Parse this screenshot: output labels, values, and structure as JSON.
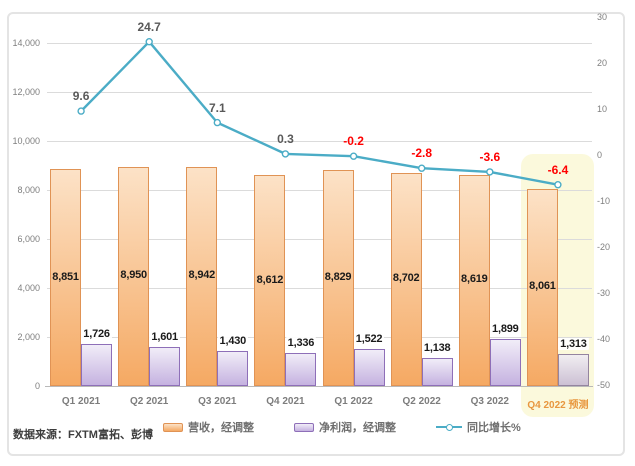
{
  "chart_data": {
    "type": "combo",
    "categories": [
      "Q1 2021",
      "Q2 2021",
      "Q3 2021",
      "Q4 2021",
      "Q1 2022",
      "Q2 2022",
      "Q3 2022",
      "Q4 2022 预测"
    ],
    "forecast_category_index": 7,
    "series": [
      {
        "name": "营收，经调整",
        "type": "bar",
        "axis": "left",
        "values": [
          8851,
          8950,
          8942,
          8612,
          8829,
          8702,
          8619,
          8061
        ],
        "labels": [
          "8,851",
          "8,950",
          "8,942",
          "8,612",
          "8,829",
          "8,702",
          "8,619",
          "8,061"
        ]
      },
      {
        "name": "净利润，经调整",
        "type": "bar",
        "axis": "left",
        "values": [
          1726,
          1601,
          1430,
          1336,
          1522,
          1138,
          1899,
          1313
        ],
        "labels": [
          "1,726",
          "1,601",
          "1,430",
          "1,336",
          "1,522",
          "1,138",
          "1,899",
          "1,313"
        ]
      },
      {
        "name": "同比增长%",
        "type": "line",
        "axis": "right",
        "values": [
          9.6,
          24.7,
          7.1,
          0.3,
          -0.2,
          -2.8,
          -3.6,
          -6.4
        ],
        "labels": [
          "9.6",
          "24.7",
          "7.1",
          "0.3",
          "-0.2",
          "-2.8",
          "-3.6",
          "-6.4"
        ]
      }
    ],
    "left_axis": {
      "min": 0,
      "max": 14000,
      "ticks": [
        {
          "value": 14000,
          "label": "14,000"
        },
        {
          "value": 12000,
          "label": "12,000"
        },
        {
          "value": 10000,
          "label": "10,000"
        },
        {
          "value": 8000,
          "label": "8,000"
        },
        {
          "value": 6000,
          "label": "6,000"
        },
        {
          "value": 4000,
          "label": "4,000"
        },
        {
          "value": 2000,
          "label": "2,000"
        },
        {
          "value": 0,
          "label": "0"
        }
      ]
    },
    "right_axis": {
      "min": -50,
      "max": 30,
      "ticks": [
        {
          "value": 30,
          "label": "30"
        },
        {
          "value": 20,
          "label": "20"
        },
        {
          "value": 10,
          "label": "10"
        },
        {
          "value": 0,
          "label": "0"
        },
        {
          "value": -10,
          "label": "-10"
        },
        {
          "value": -20,
          "label": "-20"
        },
        {
          "value": -30,
          "label": "-30"
        },
        {
          "value": -40,
          "label": "-40"
        },
        {
          "value": -50,
          "label": "-50"
        }
      ]
    },
    "grid": true,
    "legend_position": "bottom",
    "legend": [
      {
        "label": "营收，经调整"
      },
      {
        "label": "净利润，经调整"
      },
      {
        "label": "同比增长%"
      }
    ],
    "source": "数据来源：FXTM富拓、彭博"
  },
  "colors": {
    "revenue_fill_top": "#FCE2C7",
    "revenue_fill_bottom": "#F5A963",
    "revenue_border": "#E09355",
    "profit_fill_top": "#F1EDF8",
    "profit_fill_bottom": "#C5B2E0",
    "profit_border": "#8E6FB8",
    "forecast_profit_fill_top": "#F1EEF1",
    "forecast_profit_fill_bottom": "#CCC0D4",
    "forecast_profit_border": "#94849F",
    "line": "#4BACC6",
    "negative_value_label": "#FF0000",
    "positive_value_label": "#595959",
    "bar_value_label": "#1A1A1A",
    "axis_label": "#7F7F7F",
    "highlight": "#FBF9DC",
    "forecast_category_label": "#E8973F"
  }
}
